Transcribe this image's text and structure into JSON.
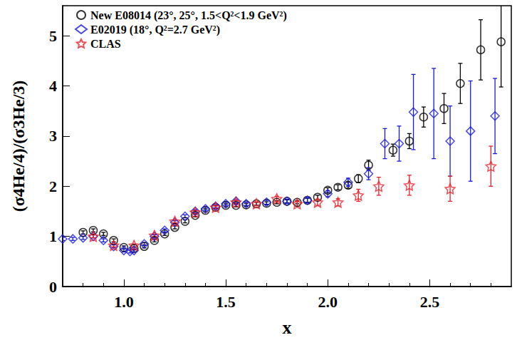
{
  "chart_data": {
    "type": "scatter",
    "xlabel": "x",
    "ylabel": "(σ4He/4)/(σ3He/3)",
    "xlim": [
      0.7,
      2.9
    ],
    "ylim": [
      0,
      5.6
    ],
    "xticks": [
      {
        "value": 1,
        "label": "1.0"
      },
      1.5,
      {
        "value": 2,
        "label": "2.0"
      },
      2.5
    ],
    "yticks": [
      0,
      1,
      2,
      3,
      4,
      5
    ],
    "grid": false,
    "legend": "upper left",
    "series": [
      {
        "name": "New E08014 (23°, 25°, 1.5<Q²<1.9 GeV²)",
        "color": "#000000",
        "marker": "circle",
        "x": [
          0.8,
          0.85,
          0.9,
          0.95,
          1.0,
          1.05,
          1.1,
          1.15,
          1.2,
          1.25,
          1.3,
          1.35,
          1.4,
          1.45,
          1.5,
          1.55,
          1.6,
          1.65,
          1.7,
          1.75,
          1.8,
          1.85,
          1.9,
          1.95,
          2.0,
          2.05,
          2.1,
          2.15,
          2.2,
          2.32,
          2.4,
          2.47,
          2.57,
          2.65,
          2.75,
          2.85
        ],
        "values": [
          1.08,
          1.12,
          1.05,
          0.92,
          0.78,
          0.76,
          0.8,
          0.92,
          1.05,
          1.18,
          1.3,
          1.42,
          1.52,
          1.58,
          1.62,
          1.62,
          1.63,
          1.65,
          1.66,
          1.68,
          1.7,
          1.68,
          1.72,
          1.78,
          1.92,
          1.98,
          2.02,
          2.15,
          2.42,
          2.72,
          2.9,
          3.38,
          3.55,
          4.05,
          4.72,
          4.88
        ],
        "errors": [
          0.03,
          0.03,
          0.03,
          0.03,
          0.03,
          0.03,
          0.03,
          0.03,
          0.03,
          0.03,
          0.03,
          0.03,
          0.03,
          0.03,
          0.03,
          0.03,
          0.03,
          0.03,
          0.03,
          0.03,
          0.03,
          0.03,
          0.04,
          0.04,
          0.05,
          0.05,
          0.06,
          0.08,
          0.1,
          0.12,
          0.15,
          0.2,
          0.3,
          0.4,
          0.6,
          0.9
        ]
      },
      {
        "name": "E02019 (18°, Q²=2.7 GeV²)",
        "color": "#1a1adb",
        "marker": "diamond",
        "x": [
          0.7,
          0.75,
          0.8,
          0.85,
          0.9,
          0.95,
          1.0,
          1.03,
          1.05,
          1.1,
          1.15,
          1.2,
          1.25,
          1.3,
          1.35,
          1.4,
          1.45,
          1.5,
          1.55,
          1.6,
          1.7,
          1.8,
          1.9,
          2.0,
          2.1,
          2.2,
          2.28,
          2.35,
          2.42,
          2.52,
          2.6,
          2.7,
          2.82
        ],
        "values": [
          0.95,
          0.95,
          0.97,
          1.0,
          0.92,
          0.8,
          0.72,
          0.7,
          0.72,
          0.85,
          1.0,
          1.12,
          1.28,
          1.4,
          1.5,
          1.55,
          1.6,
          1.65,
          1.7,
          1.65,
          1.68,
          1.7,
          1.72,
          1.85,
          2.08,
          2.25,
          2.85,
          2.85,
          3.48,
          3.45,
          2.9,
          3.1,
          3.4
        ],
        "errors": [
          0.03,
          0.03,
          0.03,
          0.03,
          0.03,
          0.03,
          0.03,
          0.03,
          0.03,
          0.03,
          0.03,
          0.03,
          0.03,
          0.03,
          0.03,
          0.03,
          0.03,
          0.03,
          0.03,
          0.03,
          0.04,
          0.04,
          0.05,
          0.06,
          0.08,
          0.12,
          0.3,
          0.35,
          0.75,
          0.9,
          0.7,
          1.0,
          0.75
        ]
      },
      {
        "name": "CLAS",
        "color": "#e8202a",
        "marker": "star",
        "x": [
          0.85,
          0.95,
          1.05,
          1.15,
          1.25,
          1.35,
          1.45,
          1.55,
          1.65,
          1.75,
          1.85,
          1.95,
          2.05,
          2.15,
          2.25,
          2.4,
          2.6,
          2.8
        ],
        "values": [
          1.0,
          0.82,
          0.82,
          1.02,
          1.3,
          1.48,
          1.58,
          1.68,
          1.65,
          1.75,
          1.65,
          1.68,
          1.68,
          1.82,
          2.0,
          2.02,
          1.95,
          2.4
        ],
        "errors": [
          0.03,
          0.03,
          0.03,
          0.03,
          0.03,
          0.03,
          0.03,
          0.04,
          0.04,
          0.05,
          0.05,
          0.06,
          0.07,
          0.12,
          0.18,
          0.2,
          0.25,
          0.4
        ]
      }
    ]
  }
}
